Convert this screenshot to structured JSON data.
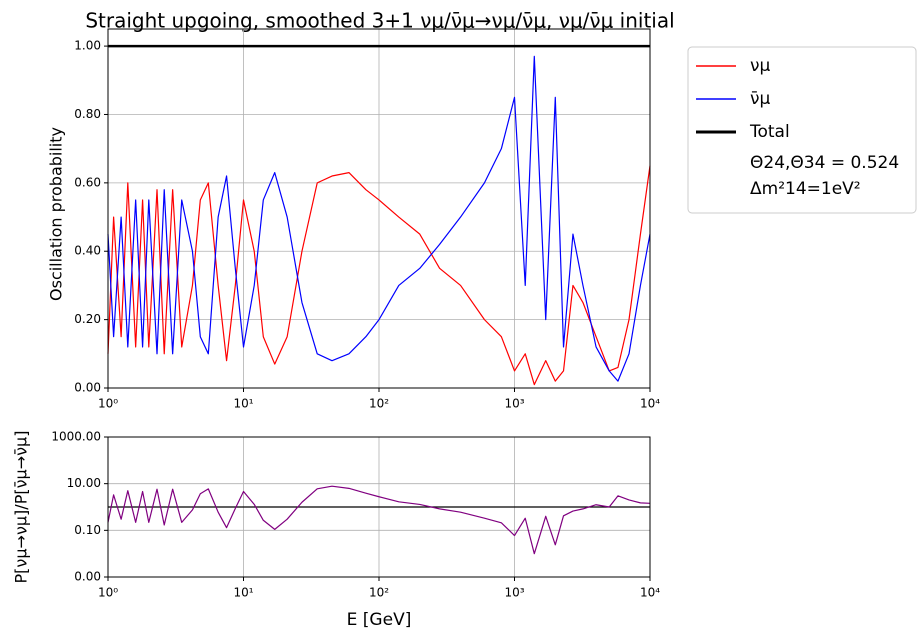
{
  "chart_data": [
    {
      "type": "line",
      "title": "Straight upgoing, smoothed 3+1 νμ/ν̄μ→νμ/ν̄μ, νμ/ν̄μ initial",
      "y_label": "Oscillation probability",
      "x_log": true,
      "y_log": false,
      "grid": true,
      "legend": "outside right",
      "xlim": [
        1,
        10000
      ],
      "xticks": [
        {
          "value": 1,
          "label": "10⁰"
        },
        {
          "value": 10,
          "label": "10¹"
        },
        {
          "value": 100,
          "label": "10²"
        },
        {
          "value": 1000,
          "label": "10³"
        },
        {
          "value": 10000,
          "label": "10⁴"
        }
      ],
      "ylim": [
        0,
        1.05
      ],
      "yticks": [
        {
          "value": 0,
          "label": "0.00"
        },
        {
          "value": 0.2,
          "label": "0.20"
        },
        {
          "value": 0.4,
          "label": "0.40"
        },
        {
          "value": 0.6,
          "label": "0.60"
        },
        {
          "value": 0.8,
          "label": "0.80"
        },
        {
          "value": 1,
          "label": "1.00"
        }
      ],
      "x": [
        1,
        1.1,
        1.25,
        1.4,
        1.6,
        1.8,
        2.0,
        2.3,
        2.6,
        3.0,
        3.5,
        4.2,
        4.8,
        5.5,
        6.5,
        7.5,
        8.7,
        10,
        12,
        14,
        17,
        21,
        27,
        35,
        45,
        60,
        80,
        100,
        140,
        200,
        280,
        400,
        600,
        800,
        1000,
        1200,
        1400,
        1700,
        2000,
        2300,
        2700,
        3200,
        4000,
        5000,
        5800,
        7000,
        8500,
        10000
      ],
      "series": [
        {
          "name": "νμ",
          "color": "#ff0000",
          "width": 1.2,
          "values": [
            0.1,
            0.5,
            0.15,
            0.6,
            0.12,
            0.55,
            0.12,
            0.58,
            0.1,
            0.58,
            0.12,
            0.3,
            0.55,
            0.6,
            0.3,
            0.08,
            0.3,
            0.55,
            0.4,
            0.15,
            0.07,
            0.15,
            0.4,
            0.6,
            0.62,
            0.63,
            0.58,
            0.55,
            0.5,
            0.45,
            0.35,
            0.3,
            0.2,
            0.15,
            0.05,
            0.1,
            0.01,
            0.08,
            0.02,
            0.05,
            0.3,
            0.25,
            0.15,
            0.05,
            0.06,
            0.2,
            0.45,
            0.65
          ]
        },
        {
          "name": "ν̄μ",
          "color": "#0000ff",
          "width": 1.2,
          "values": [
            0.45,
            0.15,
            0.5,
            0.12,
            0.55,
            0.12,
            0.55,
            0.1,
            0.58,
            0.1,
            0.55,
            0.4,
            0.15,
            0.1,
            0.5,
            0.62,
            0.35,
            0.12,
            0.3,
            0.55,
            0.63,
            0.5,
            0.25,
            0.1,
            0.08,
            0.1,
            0.15,
            0.2,
            0.3,
            0.35,
            0.42,
            0.5,
            0.6,
            0.7,
            0.85,
            0.3,
            0.97,
            0.2,
            0.85,
            0.12,
            0.45,
            0.3,
            0.12,
            0.05,
            0.02,
            0.1,
            0.3,
            0.45
          ]
        },
        {
          "name": "Total",
          "color": "#000000",
          "width": 2.5,
          "x": [
            1,
            10000
          ],
          "values": [
            1,
            1
          ]
        }
      ],
      "legend_notes": [
        "Θ24,Θ34 = 0.524",
        "Δm²14=1eV²"
      ]
    },
    {
      "type": "line",
      "x_label": "E [GeV]",
      "y_label": "P[νμ→νμ]/P[ν̄μ→ν̄μ]",
      "x_log": true,
      "y_log": true,
      "grid": true,
      "xlim": [
        1,
        10000
      ],
      "xticks": [
        {
          "value": 1,
          "label": "10⁰"
        },
        {
          "value": 10,
          "label": "10¹"
        },
        {
          "value": 100,
          "label": "10²"
        },
        {
          "value": 1000,
          "label": "10³"
        },
        {
          "value": 10000,
          "label": "10⁴"
        }
      ],
      "ylim": [
        0.001,
        1000
      ],
      "yticks": [
        {
          "value": 0.001,
          "label": "0.00"
        },
        {
          "value": 0.1,
          "label": "0.10"
        },
        {
          "value": 10,
          "label": "10.00"
        },
        {
          "value": 1000,
          "label": "1000.00"
        }
      ],
      "reference_line": 1,
      "x": [
        1,
        1.1,
        1.25,
        1.4,
        1.6,
        1.8,
        2.0,
        2.3,
        2.6,
        3.0,
        3.5,
        4.2,
        4.8,
        5.5,
        6.5,
        7.5,
        8.7,
        10,
        12,
        14,
        17,
        21,
        27,
        35,
        45,
        60,
        80,
        100,
        140,
        200,
        280,
        400,
        600,
        800,
        1000,
        1200,
        1400,
        1700,
        2000,
        2300,
        2700,
        3200,
        4000,
        5000,
        5800,
        7000,
        8500,
        10000
      ],
      "series": [
        {
          "color": "#800080",
          "width": 1.2,
          "values": [
            0.22,
            3.3,
            0.3,
            5,
            0.22,
            4.6,
            0.22,
            5.8,
            0.17,
            5.8,
            0.22,
            0.75,
            3.7,
            6,
            0.6,
            0.13,
            0.86,
            4.6,
            1.3,
            0.27,
            0.11,
            0.3,
            1.6,
            6,
            7.8,
            6.3,
            3.9,
            2.75,
            1.67,
            1.29,
            0.83,
            0.6,
            0.33,
            0.21,
            0.06,
            0.33,
            0.01,
            0.4,
            0.024,
            0.42,
            0.67,
            0.83,
            1.25,
            1,
            3,
            2,
            1.5,
            1.44
          ]
        }
      ]
    }
  ]
}
